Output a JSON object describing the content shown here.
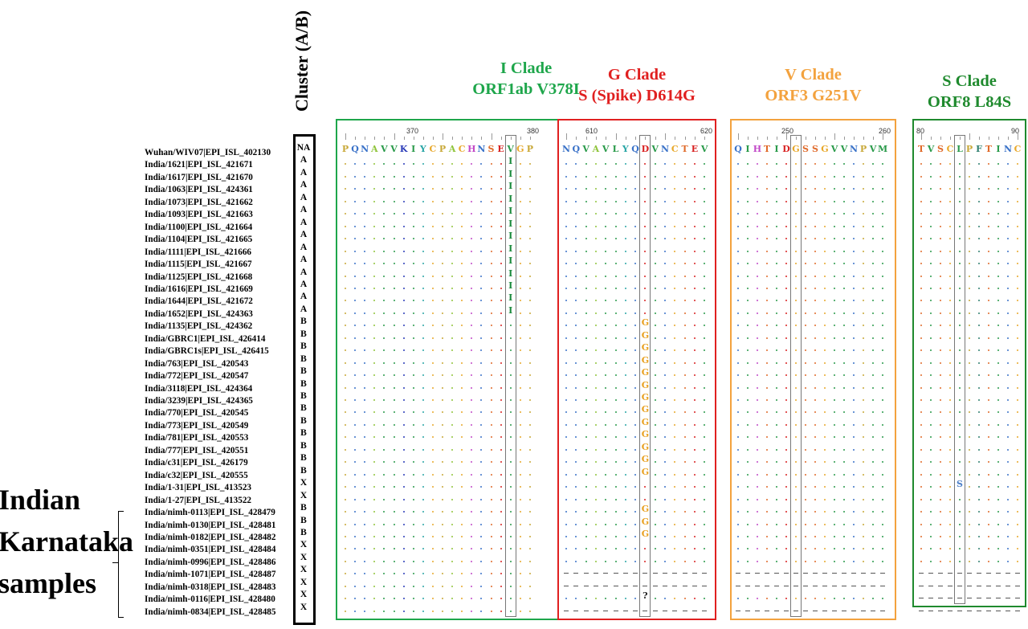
{
  "cluster_header": "Cluster (A/B)",
  "group_label": [
    "Indian",
    "Karnataka",
    "samples"
  ],
  "samples": [
    {
      "name": "Wuhan/WIV07|EPI_ISL_402130",
      "cluster": "NA"
    },
    {
      "name": "India/1621|EPI_ISL_421671",
      "cluster": "A"
    },
    {
      "name": "India/1617|EPI_ISL_421670",
      "cluster": "A"
    },
    {
      "name": "India/1063|EPI_ISL_424361",
      "cluster": "A"
    },
    {
      "name": "India/1073|EPI_ISL_421662",
      "cluster": "A"
    },
    {
      "name": "India/1093|EPI_ISL_421663",
      "cluster": "A"
    },
    {
      "name": "India/1100|EPI_ISL_421664",
      "cluster": "A"
    },
    {
      "name": "India/1104|EPI_ISL_421665",
      "cluster": "A"
    },
    {
      "name": "India/1111|EPI_ISL_421666",
      "cluster": "A"
    },
    {
      "name": "India/1115|EPI_ISL_421667",
      "cluster": "A"
    },
    {
      "name": "India/1125|EPI_ISL_421668",
      "cluster": "A"
    },
    {
      "name": "India/1616|EPI_ISL_421669",
      "cluster": "A"
    },
    {
      "name": "India/1644|EPI_ISL_421672",
      "cluster": "A"
    },
    {
      "name": "India/1652|EPI_ISL_424363",
      "cluster": "A"
    },
    {
      "name": "India/1135|EPI_ISL_424362",
      "cluster": "B"
    },
    {
      "name": "India/GBRC1|EPI_ISL_426414",
      "cluster": "B"
    },
    {
      "name": "India/GBRC1s|EPI_ISL_426415",
      "cluster": "B"
    },
    {
      "name": "India/763|EPI_ISL_420543",
      "cluster": "B"
    },
    {
      "name": "India/772|EPI_ISL_420547",
      "cluster": "B"
    },
    {
      "name": "India/3118|EPI_ISL_424364",
      "cluster": "B"
    },
    {
      "name": "India/3239|EPI_ISL_424365",
      "cluster": "B"
    },
    {
      "name": "India/770|EPI_ISL_420545",
      "cluster": "B"
    },
    {
      "name": "India/773|EPI_ISL_420549",
      "cluster": "B"
    },
    {
      "name": "India/781|EPI_ISL_420553",
      "cluster": "B"
    },
    {
      "name": "India/777|EPI_ISL_420551",
      "cluster": "B"
    },
    {
      "name": "India/c31|EPI_ISL_426179",
      "cluster": "B"
    },
    {
      "name": "India/c32|EPI_ISL_420555",
      "cluster": "B"
    },
    {
      "name": "India/1-31|EPI_ISL_413523",
      "cluster": "X"
    },
    {
      "name": "India/1-27|EPI_ISL_413522",
      "cluster": "X"
    },
    {
      "name": "India/nimh-0113|EPI_ISL_428479",
      "cluster": "B"
    },
    {
      "name": "India/nimh-0130|EPI_ISL_428481",
      "cluster": "B"
    },
    {
      "name": "India/nimh-0182|EPI_ISL_428482",
      "cluster": "B"
    },
    {
      "name": "India/nimh-0351|EPI_ISL_428484",
      "cluster": "X"
    },
    {
      "name": "India/nimh-0996|EPI_ISL_428486",
      "cluster": "X"
    },
    {
      "name": "India/nimh-1071|EPI_ISL_428487",
      "cluster": "X"
    },
    {
      "name": "India/nimh-0318|EPI_ISL_428483",
      "cluster": "X"
    },
    {
      "name": "India/nimh-0116|EPI_ISL_428480",
      "cluster": "X"
    },
    {
      "name": "India/nimh-0834|EPI_ISL_428485",
      "cluster": "X"
    }
  ],
  "panels": [
    {
      "id": "i-clade",
      "title": "I Clade",
      "subtitle": "ORF1ab V378I",
      "color": "#1ea64b",
      "ruler_labels": [
        "370",
        "380"
      ],
      "reference": "PQNAVVKIYCPACHNSEVGP",
      "highlight_index": 17,
      "mutations": [
        {
          "rows": [
            1,
            2,
            3,
            4,
            5,
            6,
            7,
            8,
            9,
            10,
            11,
            12,
            13
          ],
          "letter": "I",
          "color": "#1a8a3c"
        }
      ],
      "gap_rows": []
    },
    {
      "id": "g-clade",
      "title": "G Clade",
      "subtitle": "S (Spike) D614G",
      "color": "#e02020",
      "ruler_labels": [
        "610",
        "620"
      ],
      "reference": "NQVAVLYQDVNCTEV",
      "highlight_index": 8,
      "mutations": [
        {
          "rows": [
            14,
            15,
            16,
            17,
            18,
            19,
            20,
            21,
            22,
            23,
            24,
            25,
            26,
            29,
            30,
            31
          ],
          "letter": "G",
          "color": "#e8a020"
        },
        {
          "rows": [
            36
          ],
          "letter": "?",
          "color": "#222222"
        }
      ],
      "gap_rows": [
        34,
        35,
        37
      ]
    },
    {
      "id": "v-clade",
      "title": "V Clade",
      "subtitle": "ORF3 G251V",
      "color": "#f3a23e",
      "ruler_labels": [
        "250",
        "260"
      ],
      "reference": "QIHTIDGSSGVVNPVM",
      "highlight_index": 6,
      "mutations": [],
      "gap_rows": [
        34,
        35,
        37
      ]
    },
    {
      "id": "s-clade",
      "title": "S Clade",
      "subtitle": "ORF8 L84S",
      "color": "#1f8a2e",
      "ruler_labels": [
        "80",
        "90"
      ],
      "reference": "TVSCLPFTINC",
      "highlight_index": 4,
      "mutations": [
        {
          "rows": [
            27
          ],
          "letter": "S",
          "color": "#4a7ec8"
        }
      ],
      "gap_rows": [
        34,
        35,
        36,
        37
      ]
    }
  ],
  "residue_colors": {
    "A": "#8fc43a",
    "V": "#2a9a4a",
    "I": "#2a9a4a",
    "L": "#2a9a4a",
    "M": "#2a9a4a",
    "F": "#2f7f6f",
    "Y": "#2aa6a6",
    "W": "#2aa6a6",
    "C": "#e8a82a",
    "P": "#c8a838",
    "G": "#e8a82a",
    "S": "#e06a2a",
    "T": "#e06a2a",
    "N": "#3a72c8",
    "Q": "#3a72c8",
    "D": "#d82222",
    "E": "#d82222",
    "K": "#2a3ab8",
    "R": "#2a3ab8",
    "H": "#c24ac8"
  }
}
